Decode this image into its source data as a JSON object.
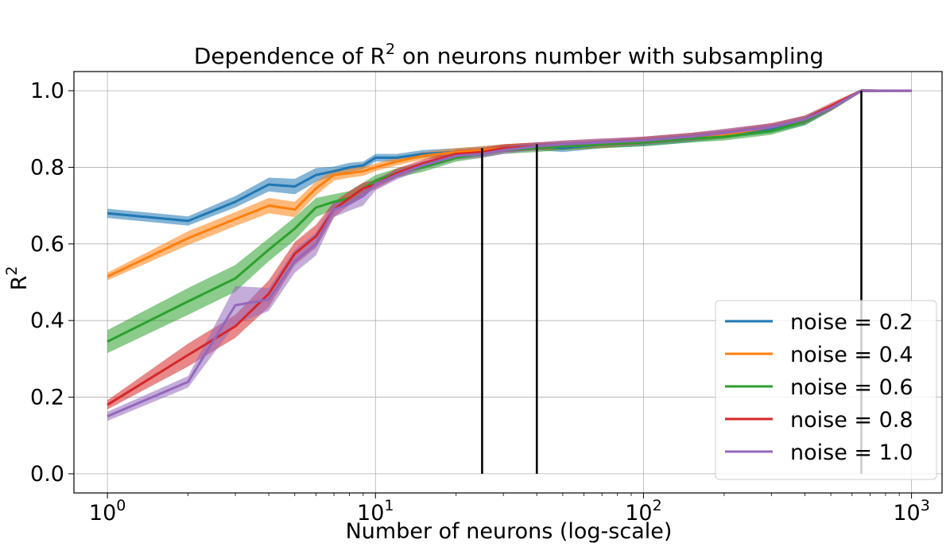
{
  "chart_data": {
    "type": "line",
    "title": "Dependence of R",
    "title_sup": "2",
    "title_rest": " on neurons number with subsampling",
    "xlabel": "Number of neurons (log-scale)",
    "ylabel": "R",
    "ylabel_sup": "2",
    "x_scale": "log",
    "xlim": [
      0.75,
      1300
    ],
    "ylim": [
      -0.05,
      1.05
    ],
    "x_ticks": [
      {
        "value": 1,
        "base": "10",
        "exp": "0"
      },
      {
        "value": 10,
        "base": "10",
        "exp": "1"
      },
      {
        "value": 100,
        "base": "10",
        "exp": "2"
      },
      {
        "value": 1000,
        "base": "10",
        "exp": "3"
      }
    ],
    "y_ticks": [
      {
        "value": 0.0,
        "label": "0.0"
      },
      {
        "value": 0.2,
        "label": "0.2"
      },
      {
        "value": 0.4,
        "label": "0.4"
      },
      {
        "value": 0.6,
        "label": "0.6"
      },
      {
        "value": 0.8,
        "label": "0.8"
      },
      {
        "value": 1.0,
        "label": "1.0"
      }
    ],
    "grid": true,
    "legend_position": "lower-right",
    "vertical_lines": [
      {
        "x": 25,
        "y0": 0.0,
        "y1": 0.85
      },
      {
        "x": 40,
        "y0": 0.0,
        "y1": 0.86
      },
      {
        "x": 650,
        "y0": 0.0,
        "y1": 1.0
      }
    ],
    "x": [
      1,
      2,
      3,
      4,
      5,
      6,
      7,
      8,
      9,
      10,
      12,
      15,
      20,
      25,
      30,
      40,
      50,
      70,
      100,
      150,
      200,
      300,
      400,
      500,
      650,
      800,
      1000
    ],
    "series": [
      {
        "name": "noise = 0.2",
        "color": "#1f77b4",
        "values": [
          0.68,
          0.66,
          0.71,
          0.755,
          0.75,
          0.78,
          0.79,
          0.8,
          0.805,
          0.825,
          0.825,
          0.835,
          0.84,
          0.845,
          0.85,
          0.855,
          0.85,
          0.86,
          0.865,
          0.875,
          0.885,
          0.9,
          0.92,
          0.955,
          1.0,
          1.0,
          1.0
        ],
        "band": [
          0.012,
          0.012,
          0.015,
          0.018,
          0.02,
          0.018,
          0.012,
          0.012,
          0.01,
          0.01,
          0.01,
          0.01,
          0.01,
          0.01,
          0.01,
          0.01,
          0.01,
          0.01,
          0.01,
          0.01,
          0.01,
          0.01,
          0.01,
          0.008,
          0.004,
          0.003,
          0.003
        ]
      },
      {
        "name": "noise = 0.4",
        "color": "#ff7f0e",
        "values": [
          0.515,
          0.615,
          0.665,
          0.7,
          0.69,
          0.745,
          0.78,
          0.785,
          0.79,
          0.8,
          0.815,
          0.83,
          0.84,
          0.845,
          0.85,
          0.855,
          0.855,
          0.86,
          0.87,
          0.88,
          0.885,
          0.905,
          0.925,
          0.955,
          1.0,
          1.0,
          1.0
        ],
        "band": [
          0.01,
          0.018,
          0.018,
          0.02,
          0.02,
          0.018,
          0.015,
          0.012,
          0.012,
          0.01,
          0.01,
          0.01,
          0.01,
          0.01,
          0.01,
          0.01,
          0.01,
          0.01,
          0.01,
          0.01,
          0.01,
          0.01,
          0.01,
          0.008,
          0.004,
          0.003,
          0.003
        ]
      },
      {
        "name": "noise = 0.6",
        "color": "#2ca02c",
        "values": [
          0.345,
          0.45,
          0.51,
          0.585,
          0.64,
          0.695,
          0.71,
          0.72,
          0.745,
          0.765,
          0.785,
          0.8,
          0.825,
          0.835,
          0.845,
          0.85,
          0.855,
          0.86,
          0.865,
          0.875,
          0.88,
          0.895,
          0.92,
          0.955,
          1.0,
          1.0,
          1.0
        ],
        "band": [
          0.03,
          0.035,
          0.035,
          0.03,
          0.03,
          0.025,
          0.02,
          0.018,
          0.015,
          0.015,
          0.012,
          0.012,
          0.01,
          0.01,
          0.01,
          0.01,
          0.01,
          0.01,
          0.01,
          0.01,
          0.01,
          0.01,
          0.01,
          0.008,
          0.004,
          0.003,
          0.003
        ]
      },
      {
        "name": "noise = 0.8",
        "color": "#d62728",
        "values": [
          0.18,
          0.31,
          0.385,
          0.47,
          0.575,
          0.62,
          0.69,
          0.72,
          0.745,
          0.755,
          0.785,
          0.81,
          0.835,
          0.84,
          0.85,
          0.855,
          0.86,
          0.865,
          0.87,
          0.88,
          0.89,
          0.905,
          0.925,
          0.96,
          1.0,
          1.0,
          1.0
        ],
        "band": [
          0.012,
          0.03,
          0.03,
          0.035,
          0.03,
          0.03,
          0.02,
          0.018,
          0.015,
          0.012,
          0.012,
          0.01,
          0.01,
          0.01,
          0.01,
          0.01,
          0.01,
          0.01,
          0.01,
          0.01,
          0.01,
          0.01,
          0.01,
          0.008,
          0.004,
          0.003,
          0.003
        ]
      },
      {
        "name": "noise = 1.0",
        "color": "#9467bd",
        "values": [
          0.15,
          0.24,
          0.44,
          0.455,
          0.555,
          0.6,
          0.69,
          0.705,
          0.725,
          0.755,
          0.78,
          0.805,
          0.83,
          0.835,
          0.845,
          0.855,
          0.86,
          0.865,
          0.87,
          0.88,
          0.89,
          0.905,
          0.925,
          0.955,
          1.0,
          1.0,
          1.0
        ],
        "band": [
          0.012,
          0.015,
          0.05,
          0.03,
          0.03,
          0.03,
          0.02,
          0.018,
          0.025,
          0.015,
          0.012,
          0.01,
          0.01,
          0.01,
          0.01,
          0.01,
          0.01,
          0.01,
          0.01,
          0.01,
          0.01,
          0.01,
          0.01,
          0.008,
          0.004,
          0.003,
          0.003
        ]
      }
    ]
  }
}
